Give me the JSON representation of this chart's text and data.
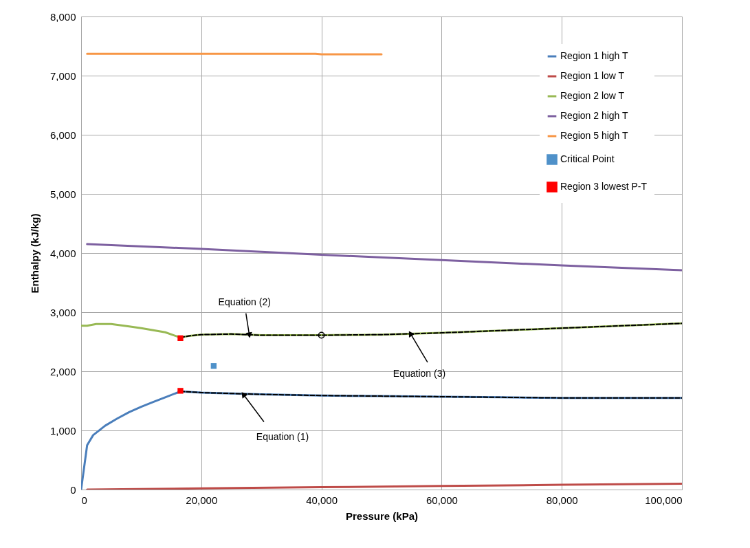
{
  "chart_data": {
    "type": "line",
    "xlabel": "Pressure (kPa)",
    "ylabel": "Enthalpy (kJ/kg)",
    "xlim": [
      0,
      100000
    ],
    "xticks": [
      0,
      {
        "value": 20000,
        "label": "20,000"
      },
      {
        "value": 40000,
        "label": "40,000"
      },
      {
        "value": 60000,
        "label": "60,000"
      },
      {
        "value": 80000,
        "label": "80,000"
      },
      {
        "value": 100000,
        "label": "100,000"
      }
    ],
    "ylim": [
      0,
      8000
    ],
    "yticks": [
      0,
      {
        "value": 1000,
        "label": "1,000"
      },
      {
        "value": 2000,
        "label": "2,000"
      },
      {
        "value": 3000,
        "label": "3,000"
      },
      {
        "value": 4000,
        "label": "4,000"
      },
      {
        "value": 5000,
        "label": "5,000"
      },
      {
        "value": 6000,
        "label": "6,000"
      },
      {
        "value": 7000,
        "label": "7,000"
      },
      {
        "value": 8000,
        "label": "8,000"
      }
    ],
    "grid": true,
    "legend": "top right",
    "marker": "none",
    "series": [
      {
        "name": "Region 1 high T",
        "color": "#4a7ebb",
        "x": [
          0,
          1000,
          2000,
          4000,
          6000,
          8000,
          10000,
          12000,
          14000,
          16529,
          20000,
          30000,
          40000,
          50000,
          60000,
          70000,
          80000,
          90000,
          100000
        ],
        "values": [
          0,
          750,
          920,
          1080,
          1200,
          1310,
          1400,
          1480,
          1560,
          1660,
          1640,
          1610,
          1590,
          1580,
          1570,
          1560,
          1550,
          1550,
          1550
        ]
      },
      {
        "name": "Region 1 low T",
        "color": "#be4b48",
        "x": [
          1000,
          20000,
          40000,
          60000,
          80000,
          100000
        ],
        "values": [
          0,
          20,
          40,
          60,
          80,
          100
        ]
      },
      {
        "name": "Region 2 low T",
        "color": "#98b954",
        "x": [
          0,
          1000,
          2500,
          5000,
          8000,
          10000,
          14000,
          16529,
          18000,
          20000,
          25000,
          30000,
          35000,
          40000,
          50000,
          60000,
          70000,
          80000,
          90000,
          100000
        ],
        "values": [
          2770,
          2770,
          2800,
          2800,
          2760,
          2730,
          2660,
          2570,
          2600,
          2620,
          2630,
          2610,
          2610,
          2610,
          2620,
          2650,
          2690,
          2730,
          2770,
          2810
        ]
      },
      {
        "name": "Region 2 high T",
        "color": "#7d60a0",
        "x": [
          1000,
          20000,
          40000,
          60000,
          80000,
          100000
        ],
        "values": [
          4150,
          4070,
          3970,
          3880,
          3790,
          3710
        ]
      },
      {
        "name": "Region 5 high T",
        "color": "#f79646",
        "x": [
          1000,
          39000,
          40000,
          50000
        ],
        "values": [
          7370,
          7370,
          7360,
          7360
        ]
      },
      {
        "name": "Critical Point",
        "type": "scatter",
        "marker": "square",
        "color": "#4f91c9",
        "x": [
          22064
        ],
        "values": [
          2090
        ]
      },
      {
        "name": "Region 3 lowest P-T",
        "type": "scatter",
        "marker": "square",
        "color": "#ff0000",
        "x": [
          16529,
          16529
        ],
        "values": [
          1670,
          2560
        ]
      },
      {
        "type": "line",
        "line_style": "dashed",
        "color": "#000000",
        "x": [
          16529,
          20000,
          30000,
          40000,
          50000,
          60000,
          70000,
          80000,
          90000,
          100000
        ],
        "values": [
          1660,
          1640,
          1610,
          1590,
          1580,
          1570,
          1560,
          1550,
          1550,
          1550
        ]
      },
      {
        "type": "line",
        "line_style": "dashed",
        "color": "#000000",
        "x": [
          16529,
          18000,
          20000,
          25000,
          30000,
          35000,
          40000,
          50000,
          60000,
          70000,
          80000,
          90000,
          100000
        ],
        "values": [
          2570,
          2600,
          2620,
          2630,
          2610,
          2610,
          2610,
          2620,
          2650,
          2690,
          2730,
          2770,
          2810
        ]
      },
      {
        "type": "scatter",
        "marker": "circle",
        "color": "#000000",
        "x": [
          40000
        ],
        "values": [
          2610
        ]
      }
    ],
    "annotations": [
      {
        "text": "Equation (2)",
        "x": 28000,
        "y": 2610
      },
      {
        "text": "Equation (1)",
        "x": 27000,
        "y": 1610
      },
      {
        "text": "Equation (3)",
        "x": 54800,
        "y": 2640
      }
    ]
  }
}
